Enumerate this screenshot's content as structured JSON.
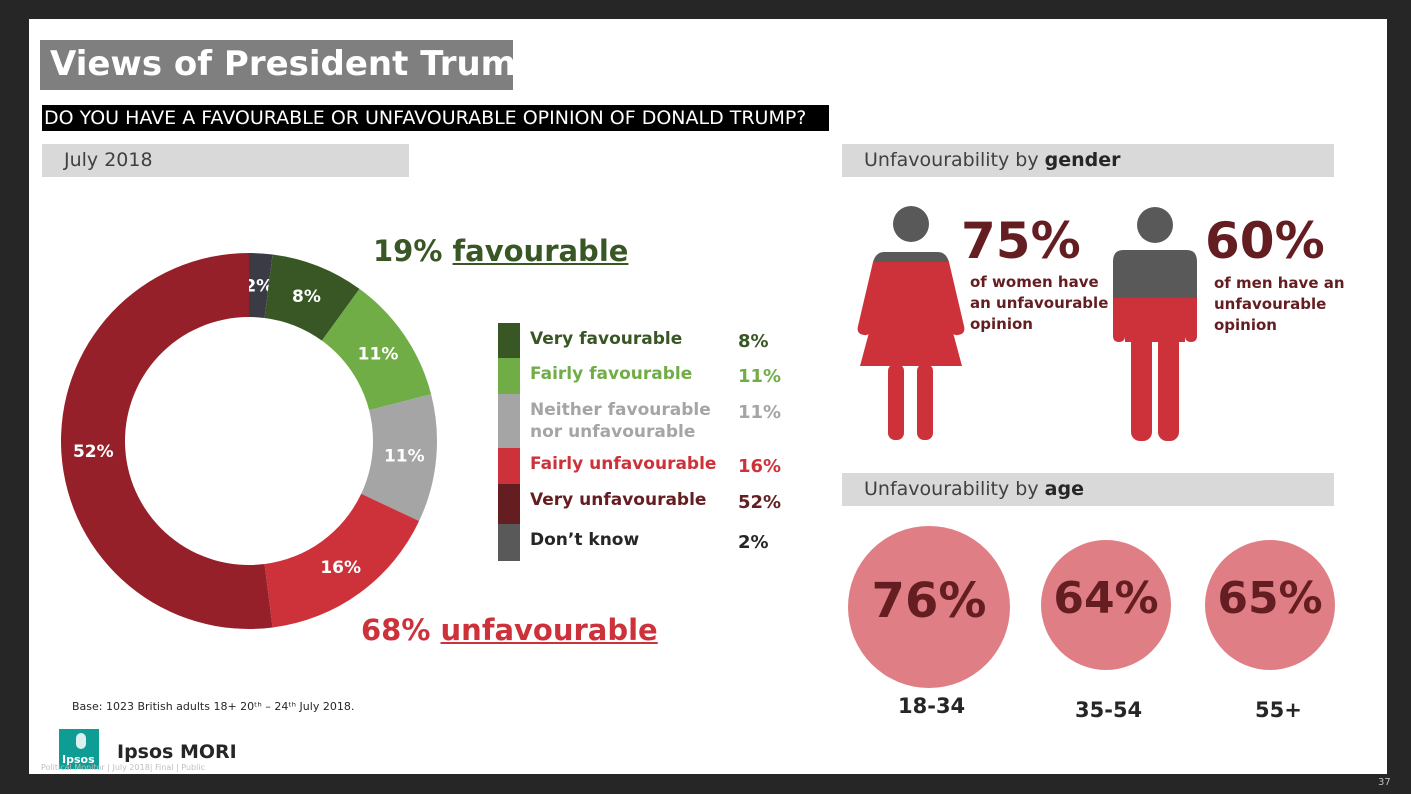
{
  "title": "Views of President Trump",
  "question": "DO YOU HAVE A FAVOURABLE OR UNFAVOURABLE OPINION OF DONALD TRUMP?",
  "date_bar": "July 2018",
  "gender_bar": {
    "prefix": "Unfavourability by",
    "bold": "gender"
  },
  "age_bar": {
    "prefix": "Unfavourability by",
    "bold": "age"
  },
  "favourable_head": {
    "pct": "19%",
    "word": "favourable"
  },
  "unfavourable_head": {
    "pct": "68%",
    "word": "unfavourable"
  },
  "colors": {
    "very_fav": "#385725",
    "fairly_fav": "#71ad47",
    "neither": "#a5a5a5",
    "fairly_unfav": "#cd323b",
    "very_unfav": "#96202a",
    "very_unfav_legend": "#641e22",
    "dont_know": "#3b3b45",
    "dont_know_legend": "#595959",
    "dark_red_text": "#641e22",
    "age_circle": "#e07e85",
    "person_grey": "#595959"
  },
  "chart_data": {
    "type": "pie",
    "donut": true,
    "title": "",
    "start": "top",
    "direction": "clockwise",
    "series": [
      {
        "name": "Don’t know",
        "value": 2,
        "label": "2%"
      },
      {
        "name": "Very favourable",
        "value": 8,
        "label": "8%"
      },
      {
        "name": "Fairly favourable",
        "value": 11,
        "label": "11%"
      },
      {
        "name": "Neither favourable nor unfavourable",
        "value": 11,
        "label": "11%"
      },
      {
        "name": "Fairly unfavourable",
        "value": 16,
        "label": "16%"
      },
      {
        "name": "Very unfavourable",
        "value": 52,
        "label": "52%"
      }
    ],
    "legend": [
      {
        "name": "Very favourable",
        "lines": [
          "Very favourable"
        ],
        "value": "8%"
      },
      {
        "name": "Fairly favourable",
        "lines": [
          "Fairly favourable"
        ],
        "value": "11%"
      },
      {
        "name": "Neither favourable nor unfavourable",
        "lines": [
          "Neither favourable",
          "nor unfavourable"
        ],
        "value": "11%"
      },
      {
        "name": "Fairly unfavourable",
        "lines": [
          "Fairly unfavourable"
        ],
        "value": "16%"
      },
      {
        "name": "Very unfavourable",
        "lines": [
          "Very unfavourable"
        ],
        "value": "52%"
      },
      {
        "name": "Don’t know",
        "lines": [
          "Don’t know"
        ],
        "value": "2%"
      }
    ],
    "legend_placement": "right"
  },
  "gender": {
    "women": {
      "pct": "75%",
      "value": 75,
      "lines": [
        "of women have",
        "an unfavourable",
        "opinion"
      ]
    },
    "men": {
      "pct": "60%",
      "value": 60,
      "lines": [
        "of men have an",
        "unfavourable",
        "opinion"
      ]
    }
  },
  "age": [
    {
      "pct": "76%",
      "value": 76,
      "label": "18-34"
    },
    {
      "pct": "64%",
      "value": 64,
      "label": "35-54"
    },
    {
      "pct": "65%",
      "value": 65,
      "label": "55+"
    }
  ],
  "base_note": "Base:  1023 British adults 18+ 20ᵗʰ – 24ᵗʰ July 2018.",
  "brand": {
    "logo_text": "Ipsos",
    "name": "Ipsos MORI"
  },
  "footer_left": "Political Monitor | July 2018| Final  |  Public",
  "page_number": "37"
}
